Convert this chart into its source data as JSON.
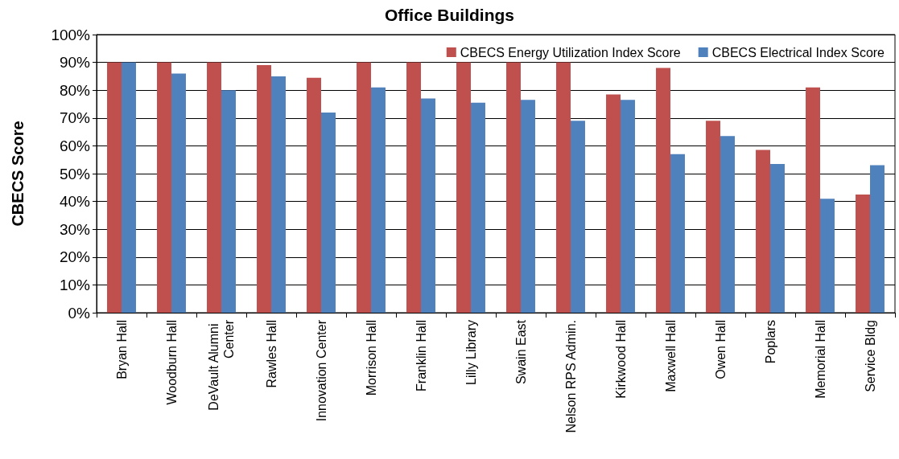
{
  "chart_data": {
    "type": "bar",
    "title": "Office Buildings",
    "ylabel": "CBECS Score",
    "categories": [
      "Bryan Hall",
      "Woodburn Hall",
      "DeVault Alumni Center",
      "Rawles Hall",
      "Innovation Center",
      "Morrison Hall",
      "Franklin Hall",
      "Lilly Library",
      "Swain East",
      "Nelson RPS Admin.",
      "Kirkwood Hall",
      "Maxwell Hall",
      "Owen Hall",
      "Poplars",
      "Memorial Hall",
      "Service Bldg"
    ],
    "series": [
      {
        "name": "CBECS Energy Utilization Index Score",
        "color": "#c0504d",
        "values": [
          90,
          90,
          90,
          89,
          84.5,
          90,
          90,
          90,
          90,
          90,
          78.5,
          88,
          69,
          58.5,
          81,
          42.5
        ]
      },
      {
        "name": "CBECS Electrical Index Score",
        "color": "#4f81bd",
        "values": [
          90,
          86,
          80,
          85,
          72,
          81,
          77,
          75.5,
          76.5,
          69,
          76.5,
          57,
          63.5,
          53.5,
          41,
          53
        ]
      }
    ],
    "ylim": [
      0,
      100
    ],
    "yticks": [
      {
        "value": 0,
        "label": "0%"
      },
      {
        "value": 10,
        "label": "10%"
      },
      {
        "value": 20,
        "label": "20%"
      },
      {
        "value": 30,
        "label": "30%"
      },
      {
        "value": 40,
        "label": "40%"
      },
      {
        "value": 50,
        "label": "50%"
      },
      {
        "value": 60,
        "label": "60%"
      },
      {
        "value": 70,
        "label": "70%"
      },
      {
        "value": 80,
        "label": "80%"
      },
      {
        "value": 90,
        "label": "90%"
      },
      {
        "value": 100,
        "label": "100%"
      }
    ],
    "grid": "y",
    "legend": "top right"
  }
}
